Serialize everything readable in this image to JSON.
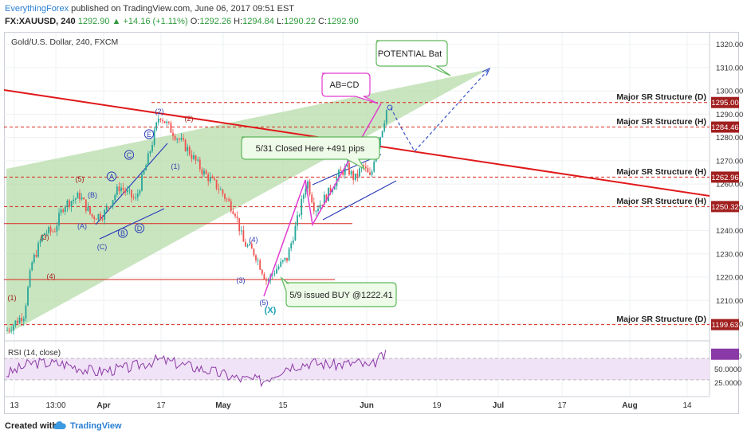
{
  "header": {
    "author": "EverythingForex",
    "published_text": " published on TradingView.com, June 06, 2017 09:51 EST",
    "symbol_line": "FX:XAUUSD, 240",
    "last_price": "1292.90",
    "change": "+14.16 (+1.11%)",
    "ohlc": [
      {
        "label": "O:",
        "value": "1292.26"
      },
      {
        "label": "H:",
        "value": "1294.84"
      },
      {
        "label": "L:",
        "value": "1290.22"
      },
      {
        "label": "C:",
        "value": "1292.90"
      }
    ]
  },
  "footer": {
    "created_with": "Created with",
    "brand": "TradingView"
  },
  "colors": {
    "candle_up": "#26a69a",
    "candle_down": "#ef5350",
    "trendline": "#e0191b",
    "sr_line": "#d9261c",
    "wedge": "#b7dcaa",
    "pattern": "#e23ccf",
    "channel": "#2f3fb8",
    "rsi": "#8a3aa6",
    "rsi_band": "#f1e3f7",
    "label_bg": "#a11f1f"
  },
  "chart_data": {
    "type": "candlestick",
    "title": "Gold/U.S. Dollar, 240, FXCM",
    "y_range": [
      1193,
      1325
    ],
    "y_ticks": [
      "1320.00",
      "1310.00",
      "1300.00",
      "1290.00",
      "1280.00",
      "1270.00",
      "1260.00",
      "1250.00",
      "1240.00",
      "1230.00",
      "1220.00",
      "1210.00",
      "1200.00"
    ],
    "x_ticks": [
      "13",
      "13:00",
      "Apr",
      "17",
      "May",
      "15",
      "Jun",
      "19",
      "Jul",
      "17",
      "Aug",
      "14"
    ],
    "price_labels": [
      "1295.00",
      "1284.46",
      "1262.96",
      "1250.32",
      "1199.63"
    ],
    "sr_levels": [
      {
        "label": "Major SR Structure (D)",
        "price": 1295.0
      },
      {
        "label": "Major SR Structure (H)",
        "price": 1284.46
      },
      {
        "label": "Major SR Structure (H)",
        "price": 1262.96
      },
      {
        "label": "Major SR Structure (H)",
        "price": 1250.32
      },
      {
        "label": "Major SR Structure (D)",
        "price": 1199.63
      }
    ],
    "callouts": [
      "POTENTIAL Bat",
      "AB=CD",
      "5/31 Closed Here +491 pips",
      "5/9 issued BUY @1222.41"
    ],
    "wave_labels": [
      "(1)",
      "(2)",
      "(3)",
      "(4)",
      "(5)",
      "(A)",
      "(B)",
      "(C)",
      "(1)",
      "(2)",
      "(3)",
      "(4)",
      "(5)",
      "A",
      "B",
      "C",
      "D",
      "E",
      "(X)"
    ],
    "rsi": {
      "label": "RSI (14, close)",
      "y_ticks": [
        "75.0000",
        "50.0000",
        "25.0000"
      ],
      "band": [
        30,
        70
      ],
      "last": 78
    }
  }
}
